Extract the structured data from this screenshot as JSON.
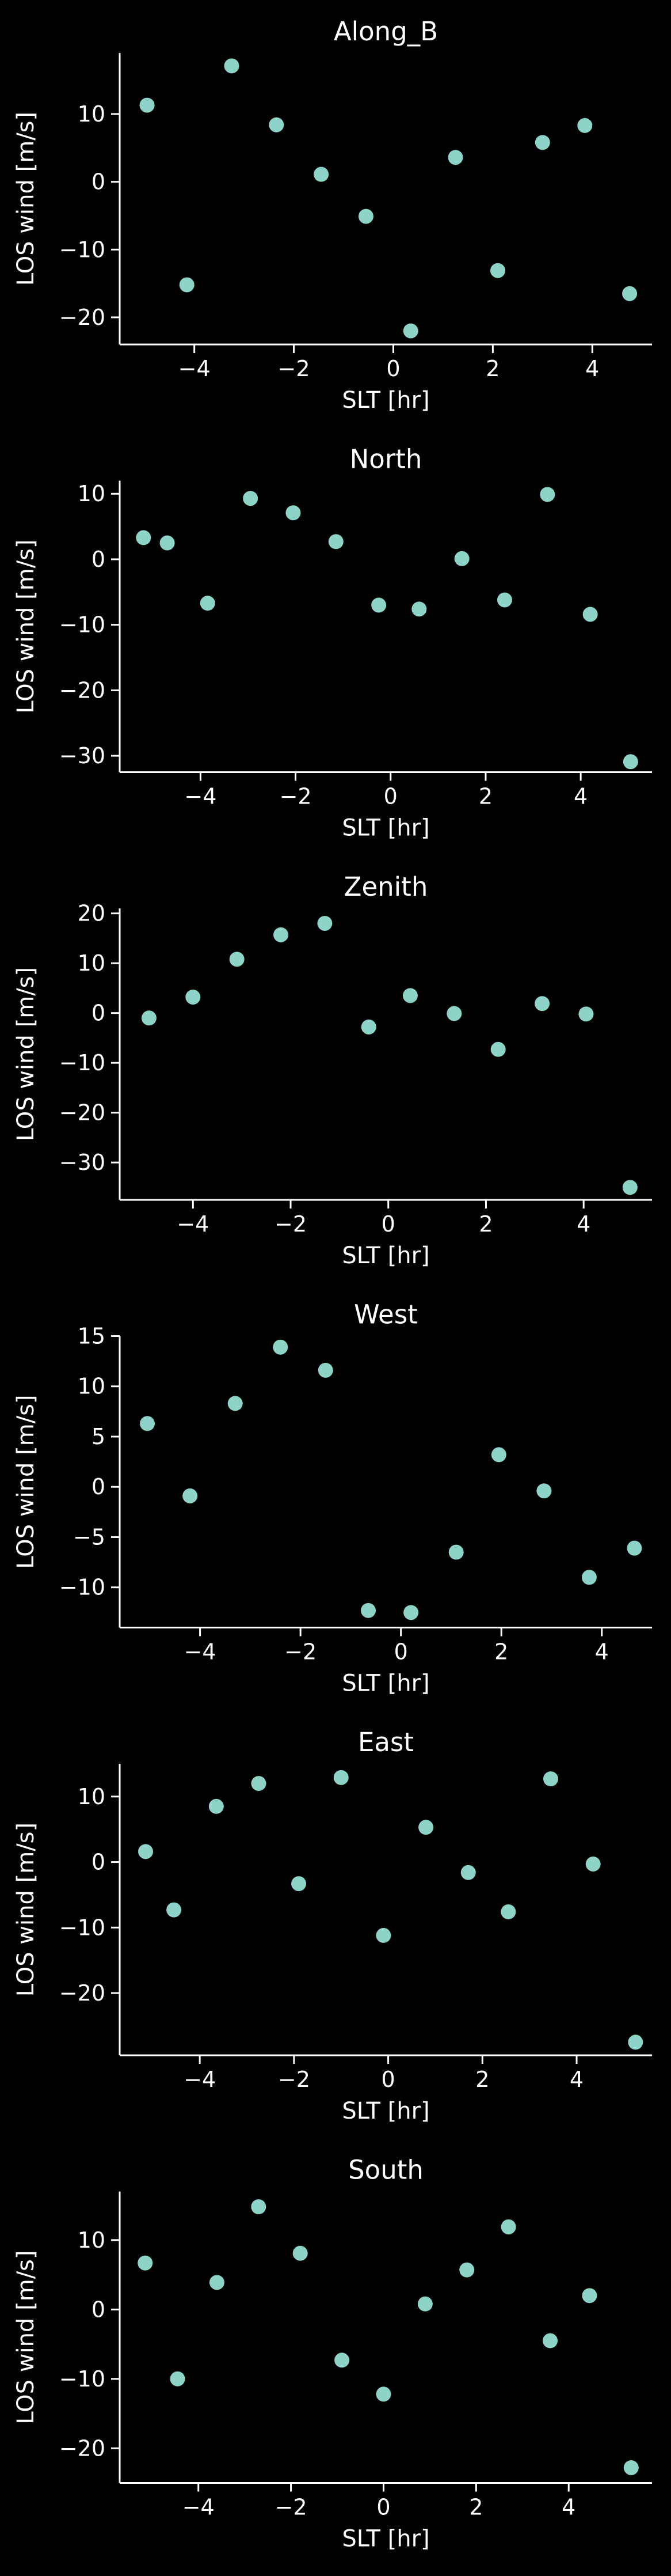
{
  "figure": {
    "background": "#000000",
    "foreground": "#ffffff",
    "marker_color": "#8dd3c7"
  },
  "chart_data": [
    {
      "type": "scatter",
      "title": "Along_B",
      "xlabel": "SLT [hr]",
      "ylabel": "LOS wind [m/s]",
      "xlim": [
        -5.5,
        5.2
      ],
      "ylim": [
        -24,
        19
      ],
      "xticks": [
        -4,
        -2,
        0,
        2,
        4
      ],
      "yticks": [
        -20,
        -10,
        0,
        10
      ],
      "x": [
        -4.95,
        -4.15,
        -3.25,
        -2.35,
        -1.45,
        -0.55,
        0.35,
        1.25,
        2.1,
        3.0,
        3.85,
        4.75
      ],
      "y": [
        11.3,
        -15.2,
        17.1,
        8.4,
        1.1,
        -5.1,
        -22.0,
        3.6,
        -13.1,
        5.8,
        8.3,
        -16.5
      ]
    },
    {
      "type": "scatter",
      "title": "North",
      "xlabel": "SLT [hr]",
      "ylabel": "LOS wind [m/s]",
      "xlim": [
        -5.7,
        5.5
      ],
      "ylim": [
        -32.5,
        12
      ],
      "xticks": [
        -4,
        -2,
        0,
        2,
        4
      ],
      "yticks": [
        -30,
        -20,
        -10,
        0,
        10
      ],
      "x": [
        -5.2,
        -4.7,
        -3.85,
        -2.95,
        -2.05,
        -1.15,
        -0.25,
        0.6,
        1.5,
        2.4,
        3.3,
        4.2,
        5.05
      ],
      "y": [
        3.3,
        2.5,
        -6.7,
        9.3,
        7.1,
        2.7,
        -7.0,
        -7.6,
        0.1,
        -6.2,
        9.9,
        -8.4,
        -30.9
      ]
    },
    {
      "type": "scatter",
      "title": "Zenith",
      "xlabel": "SLT [hr]",
      "ylabel": "LOS wind [m/s]",
      "xlim": [
        -5.5,
        5.4
      ],
      "ylim": [
        -37.5,
        21
      ],
      "xticks": [
        -4,
        -2,
        0,
        2,
        4
      ],
      "yticks": [
        -30,
        -20,
        -10,
        0,
        10,
        20
      ],
      "x": [
        -4.9,
        -4.0,
        -3.1,
        -2.2,
        -1.3,
        -0.4,
        0.45,
        1.35,
        2.25,
        3.15,
        4.05,
        4.95
      ],
      "y": [
        -1.0,
        3.2,
        10.8,
        15.7,
        18.0,
        -2.8,
        3.5,
        -0.1,
        -7.3,
        1.9,
        -0.2,
        -35.0
      ]
    },
    {
      "type": "scatter",
      "title": "West",
      "xlabel": "SLT [hr]",
      "ylabel": "LOS wind [m/s]",
      "xlim": [
        -5.6,
        5.0
      ],
      "ylim": [
        -14,
        15
      ],
      "xticks": [
        -4,
        -2,
        0,
        2,
        4
      ],
      "yticks": [
        -10,
        -5,
        0,
        5,
        10,
        15
      ],
      "x": [
        -5.05,
        -4.2,
        -3.3,
        -2.4,
        -1.5,
        -0.65,
        0.2,
        1.1,
        1.95,
        2.85,
        3.75,
        4.65
      ],
      "y": [
        6.3,
        -0.9,
        8.3,
        13.9,
        11.6,
        -12.3,
        -12.5,
        -6.5,
        3.2,
        -0.4,
        -9.0,
        -6.1
      ]
    },
    {
      "type": "scatter",
      "title": "East",
      "xlabel": "SLT [hr]",
      "ylabel": "LOS wind [m/s]",
      "xlim": [
        -5.7,
        5.6
      ],
      "ylim": [
        -29.5,
        15
      ],
      "xticks": [
        -4,
        -2,
        0,
        2,
        4
      ],
      "yticks": [
        -20,
        -10,
        0,
        10
      ],
      "x": [
        -5.15,
        -4.55,
        -3.65,
        -2.75,
        -1.9,
        -1.0,
        -0.1,
        0.8,
        1.7,
        2.55,
        3.45,
        4.35,
        5.25
      ],
      "y": [
        1.6,
        -7.3,
        8.5,
        12.0,
        -3.3,
        12.9,
        -11.2,
        5.3,
        -1.6,
        -7.6,
        12.7,
        -0.3,
        -27.5
      ]
    },
    {
      "type": "scatter",
      "title": "South",
      "xlabel": "SLT [hr]",
      "ylabel": "LOS wind [m/s]",
      "xlim": [
        -5.7,
        5.8
      ],
      "ylim": [
        -25,
        17
      ],
      "xticks": [
        -4,
        -2,
        0,
        2,
        4
      ],
      "yticks": [
        -20,
        -10,
        0,
        10
      ],
      "x": [
        -5.15,
        -4.45,
        -3.6,
        -2.7,
        -1.8,
        -0.9,
        0.0,
        0.9,
        1.8,
        2.7,
        3.6,
        4.45,
        5.35
      ],
      "y": [
        6.7,
        -10.0,
        3.9,
        14.8,
        8.1,
        -7.3,
        -12.2,
        0.8,
        5.7,
        11.9,
        -4.5,
        2.0,
        -22.8
      ]
    }
  ]
}
